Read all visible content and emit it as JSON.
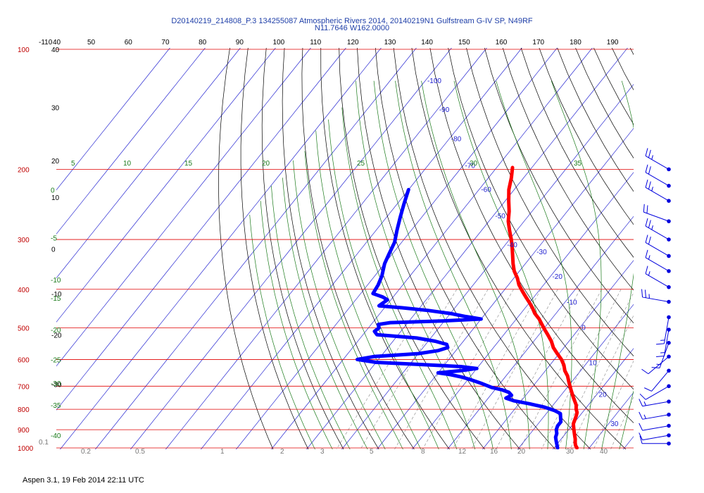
{
  "chart_data": {
    "type": "skew-t log-p sounding",
    "title_line1": "D20140219_214808_P.3 134255087 Atmospheric Rivers 2014, 20140219N1 Gulfstream G-IV SP, N49RF",
    "title_line2": "N11.7646 W162.0000",
    "footer": "Aspen 3.1, 19 Feb 2014  22:11 UTC",
    "pressure_axis": {
      "levels": [
        {
          "p": 100,
          "label": "100"
        },
        {
          "p": 200,
          "label": "200"
        },
        {
          "p": 300,
          "label": "300"
        },
        {
          "p": 400,
          "label": "400"
        },
        {
          "p": 500,
          "label": "500"
        },
        {
          "p": 600,
          "label": "600"
        },
        {
          "p": 700,
          "label": "700"
        },
        {
          "p": 800,
          "label": "800"
        },
        {
          "p": 900,
          "label": "900"
        },
        {
          "p": 1000,
          "label": "1000"
        }
      ]
    },
    "top_scale_labels": [
      "-110",
      "40",
      "50",
      "60",
      "70",
      "80",
      "90",
      "100",
      "110",
      "120",
      "130",
      "140",
      "150",
      "160",
      "170",
      "180",
      "190"
    ],
    "height_labels": [
      {
        "p": 100,
        "label": "40"
      },
      {
        "p": 140,
        "label": "30"
      },
      {
        "p": 190,
        "label": "20"
      },
      {
        "p": 235,
        "label": "10"
      },
      {
        "p": 317,
        "label": "0"
      },
      {
        "p": 410,
        "label": "-10"
      },
      {
        "p": 520,
        "label": "-20"
      },
      {
        "p": 692,
        "label": "-30"
      }
    ],
    "isotherm_labels": [
      {
        "t": -100,
        "p": 120
      },
      {
        "t": -90,
        "p": 142
      },
      {
        "t": -80,
        "p": 168
      },
      {
        "t": -70,
        "p": 196
      },
      {
        "t": -60,
        "p": 225
      },
      {
        "t": -50,
        "p": 262
      },
      {
        "t": -40,
        "p": 310
      },
      {
        "t": -30,
        "p": 323
      },
      {
        "t": -20,
        "p": 372
      },
      {
        "t": -10,
        "p": 432
      },
      {
        "t": 0,
        "p": 500
      },
      {
        "t": 10,
        "p": 612
      },
      {
        "t": 20,
        "p": 735
      },
      {
        "t": 30,
        "p": 870
      }
    ],
    "dry_adiabat_labels": [
      "5",
      "10",
      "15",
      "20",
      "25",
      "30",
      "35"
    ],
    "moist_adiabat_labels": [
      {
        "label": "0",
        "p": 225
      },
      {
        "label": "-5",
        "p": 297
      },
      {
        "label": "-10",
        "p": 378
      },
      {
        "label": "-15",
        "p": 420
      },
      {
        "label": "-20",
        "p": 505
      },
      {
        "label": "-25",
        "p": 600
      },
      {
        "label": "-30",
        "p": 688
      },
      {
        "label": "-35",
        "p": 780
      },
      {
        "label": "-40",
        "p": 930
      }
    ],
    "mixing_ratio_labels": [
      "0.1",
      "0.2",
      "0.5",
      "1",
      "2",
      "3",
      "5",
      "8",
      "12",
      "16",
      "20",
      "30",
      "40"
    ],
    "temperature_profile": [
      {
        "p": 198,
        "t": -55.5
      },
      {
        "p": 210,
        "t": -53.5
      },
      {
        "p": 225,
        "t": -51.5
      },
      {
        "p": 240,
        "t": -49.0
      },
      {
        "p": 255,
        "t": -46.5
      },
      {
        "p": 270,
        "t": -44.5
      },
      {
        "p": 285,
        "t": -42.0
      },
      {
        "p": 300,
        "t": -39.5
      },
      {
        "p": 310,
        "t": -38.0
      },
      {
        "p": 325,
        "t": -36.0
      },
      {
        "p": 345,
        "t": -33.5
      },
      {
        "p": 360,
        "t": -31.5
      },
      {
        "p": 375,
        "t": -29.0
      },
      {
        "p": 390,
        "t": -27.0
      },
      {
        "p": 405,
        "t": -24.5
      },
      {
        "p": 420,
        "t": -22.0
      },
      {
        "p": 432,
        "t": -20.0
      },
      {
        "p": 445,
        "t": -18.0
      },
      {
        "p": 460,
        "t": -16.0
      },
      {
        "p": 475,
        "t": -13.5
      },
      {
        "p": 490,
        "t": -11.5
      },
      {
        "p": 505,
        "t": -9.5
      },
      {
        "p": 520,
        "t": -7.5
      },
      {
        "p": 540,
        "t": -5.0
      },
      {
        "p": 560,
        "t": -3.0
      },
      {
        "p": 580,
        "t": -0.5
      },
      {
        "p": 600,
        "t": 2.0
      },
      {
        "p": 620,
        "t": 4.0
      },
      {
        "p": 640,
        "t": 5.5
      },
      {
        "p": 660,
        "t": 7.5
      },
      {
        "p": 680,
        "t": 9.0
      },
      {
        "p": 700,
        "t": 10.5
      },
      {
        "p": 720,
        "t": 12.0
      },
      {
        "p": 740,
        "t": 13.5
      },
      {
        "p": 760,
        "t": 15.0
      },
      {
        "p": 780,
        "t": 16.5
      },
      {
        "p": 800,
        "t": 17.5
      },
      {
        "p": 815,
        "t": 18.5
      },
      {
        "p": 830,
        "t": 19.0
      },
      {
        "p": 850,
        "t": 19.5
      },
      {
        "p": 870,
        "t": 20.0
      },
      {
        "p": 890,
        "t": 21.0
      },
      {
        "p": 910,
        "t": 22.0
      },
      {
        "p": 930,
        "t": 23.0
      },
      {
        "p": 950,
        "t": 24.0
      },
      {
        "p": 970,
        "t": 24.8
      },
      {
        "p": 985,
        "t": 25.5
      },
      {
        "p": 1000,
        "t": 26.5
      }
    ],
    "dewpoint_profile": [
      {
        "p": 225,
        "t": -80.0
      },
      {
        "p": 245,
        "t": -78.0
      },
      {
        "p": 265,
        "t": -76.0
      },
      {
        "p": 285,
        "t": -74.0
      },
      {
        "p": 305,
        "t": -72.0
      },
      {
        "p": 325,
        "t": -71.0
      },
      {
        "p": 345,
        "t": -70.0
      },
      {
        "p": 370,
        "t": -68.0
      },
      {
        "p": 390,
        "t": -67.0
      },
      {
        "p": 410,
        "t": -66.5
      },
      {
        "p": 418,
        "t": -63.0
      },
      {
        "p": 425,
        "t": -61.0
      },
      {
        "p": 440,
        "t": -62.0
      },
      {
        "p": 445,
        "t": -55.0
      },
      {
        "p": 452,
        "t": -47.0
      },
      {
        "p": 460,
        "t": -40.0
      },
      {
        "p": 468,
        "t": -35.0
      },
      {
        "p": 475,
        "t": -30.0
      },
      {
        "p": 480,
        "t": -40.0
      },
      {
        "p": 485,
        "t": -55.0
      },
      {
        "p": 490,
        "t": -58.0
      },
      {
        "p": 500,
        "t": -57.0
      },
      {
        "p": 510,
        "t": -57.5
      },
      {
        "p": 520,
        "t": -56.0
      },
      {
        "p": 530,
        "t": -44.0
      },
      {
        "p": 540,
        "t": -38.0
      },
      {
        "p": 550,
        "t": -34.0
      },
      {
        "p": 560,
        "t": -33.0
      },
      {
        "p": 570,
        "t": -35.0
      },
      {
        "p": 580,
        "t": -40.0
      },
      {
        "p": 590,
        "t": -52.0
      },
      {
        "p": 600,
        "t": -56.0
      },
      {
        "p": 610,
        "t": -50.0
      },
      {
        "p": 618,
        "t": -36.0
      },
      {
        "p": 625,
        "t": -25.0
      },
      {
        "p": 632,
        "t": -20.0
      },
      {
        "p": 640,
        "t": -24.0
      },
      {
        "p": 648,
        "t": -30.0
      },
      {
        "p": 655,
        "t": -26.0
      },
      {
        "p": 665,
        "t": -22.0
      },
      {
        "p": 675,
        "t": -19.0
      },
      {
        "p": 690,
        "t": -15.0
      },
      {
        "p": 705,
        "t": -11.5
      },
      {
        "p": 715,
        "t": -8.0
      },
      {
        "p": 725,
        "t": -5.5
      },
      {
        "p": 738,
        "t": -4.0
      },
      {
        "p": 750,
        "t": -5.0
      },
      {
        "p": 762,
        "t": -2.0
      },
      {
        "p": 775,
        "t": 3.0
      },
      {
        "p": 790,
        "t": 8.0
      },
      {
        "p": 805,
        "t": 11.5
      },
      {
        "p": 820,
        "t": 14.0
      },
      {
        "p": 840,
        "t": 15.0
      },
      {
        "p": 860,
        "t": 16.0
      },
      {
        "p": 880,
        "t": 16.0
      },
      {
        "p": 900,
        "t": 16.5
      },
      {
        "p": 920,
        "t": 17.5
      },
      {
        "p": 940,
        "t": 18.0
      },
      {
        "p": 960,
        "t": 19.0
      },
      {
        "p": 980,
        "t": 20.0
      },
      {
        "p": 1000,
        "t": 21.0
      }
    ],
    "wind_barbs": [
      {
        "p": 200,
        "dir": 300,
        "speed": 25
      },
      {
        "p": 220,
        "dir": 300,
        "speed": 20
      },
      {
        "p": 240,
        "dir": 300,
        "speed": 25
      },
      {
        "p": 270,
        "dir": 290,
        "speed": 20
      },
      {
        "p": 300,
        "dir": 300,
        "speed": 25
      },
      {
        "p": 330,
        "dir": 300,
        "speed": 20
      },
      {
        "p": 360,
        "dir": 300,
        "speed": 15
      },
      {
        "p": 395,
        "dir": 300,
        "speed": 15
      },
      {
        "p": 430,
        "dir": 280,
        "speed": 25
      },
      {
        "p": 470,
        "dir": 190,
        "speed": 15
      },
      {
        "p": 505,
        "dir": 190,
        "speed": 15
      },
      {
        "p": 545,
        "dir": 200,
        "speed": 15
      },
      {
        "p": 590,
        "dir": 230,
        "speed": 10
      },
      {
        "p": 640,
        "dir": 220,
        "speed": 10
      },
      {
        "p": 700,
        "dir": 240,
        "speed": 10
      },
      {
        "p": 765,
        "dir": 260,
        "speed": 15
      },
      {
        "p": 825,
        "dir": 260,
        "speed": 15
      },
      {
        "p": 880,
        "dir": 260,
        "speed": 10
      },
      {
        "p": 930,
        "dir": 260,
        "speed": 10
      },
      {
        "p": 975,
        "dir": 270,
        "speed": 10
      }
    ],
    "colors": {
      "isobar": "#e00000",
      "isotherm": "#2020d0",
      "dry_adiabat": "#000000",
      "moist_adiabat": "#1a7a1a",
      "mixing_ratio": "#888888",
      "temperature": "#ff0000",
      "dewpoint": "#0000ff",
      "wind": "#0000dd"
    }
  }
}
